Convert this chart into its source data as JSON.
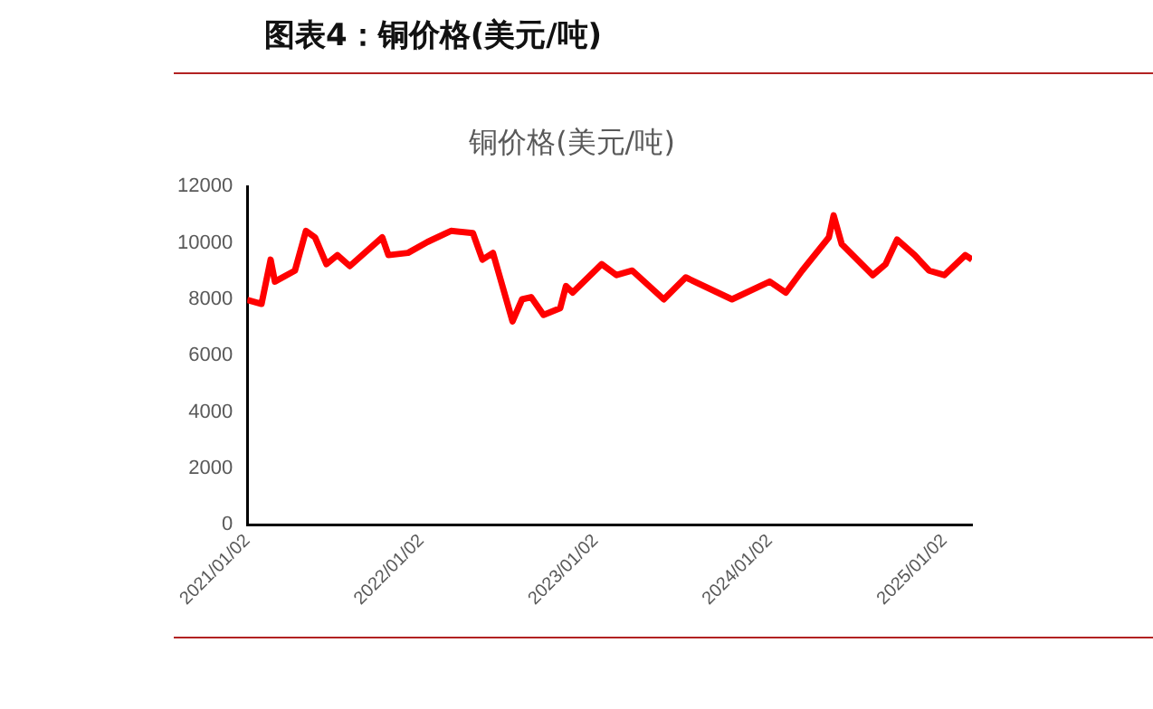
{
  "chart_data": {
    "type": "line",
    "title": "图表4：铜价格(美元/吨)",
    "subtitle": "铜价格(美元/吨)",
    "x": [
      "2021-01-02",
      "2021-02-01",
      "2021-02-20",
      "2021-03-01",
      "2021-04-12",
      "2021-05-05",
      "2021-05-24",
      "2021-06-17",
      "2021-07-10",
      "2021-08-05",
      "2021-10-12",
      "2021-10-25",
      "2021-12-05",
      "2022-01-15",
      "2022-03-05",
      "2022-04-20",
      "2022-05-10",
      "2022-06-01",
      "2022-07-12",
      "2022-08-01",
      "2022-08-20",
      "2022-09-15",
      "2022-10-20",
      "2022-11-01",
      "2022-11-15",
      "2023-01-15",
      "2023-02-15",
      "2023-03-20",
      "2023-05-25",
      "2023-07-10",
      "2023-10-15",
      "2024-01-02",
      "2024-02-05",
      "2024-03-10",
      "2024-05-05",
      "2024-05-15",
      "2024-06-01",
      "2024-08-05",
      "2024-09-01",
      "2024-09-25",
      "2024-11-01",
      "2024-12-01",
      "2025-01-02",
      "2025-02-15",
      "2025-03-01"
    ],
    "series": [
      {
        "color": "#ff0000",
        "values": [
          7980,
          7840,
          9410,
          8630,
          9020,
          10430,
          10200,
          9250,
          9570,
          9180,
          10200,
          9570,
          9650,
          10040,
          10430,
          10350,
          9410,
          9650,
          7220,
          8000,
          8080,
          7450,
          7690,
          8470,
          8240,
          9250,
          8860,
          9020,
          8000,
          8780,
          8000,
          8630,
          8240,
          9020,
          10200,
          10980,
          9960,
          8860,
          9250,
          10120,
          9570,
          9020,
          8860,
          9570,
          9410
        ]
      }
    ],
    "xlim": [
      "2021-01-02",
      "2025-03-01"
    ],
    "xticks": [
      {
        "value": "2021-01-02",
        "label": "2021/01/02"
      },
      {
        "value": "2022-01-02",
        "label": "2022/01/02"
      },
      {
        "value": "2023-01-02",
        "label": "2023/01/02"
      },
      {
        "value": "2024-01-02",
        "label": "2024/01/02"
      },
      {
        "value": "2025-01-02",
        "label": "2025/01/02"
      }
    ],
    "ylim": [
      0,
      12000
    ],
    "yticks": [
      0,
      2000,
      4000,
      6000,
      8000,
      10000,
      12000
    ],
    "grid": false,
    "legend": false,
    "marker": "none",
    "line_style": "solid"
  }
}
